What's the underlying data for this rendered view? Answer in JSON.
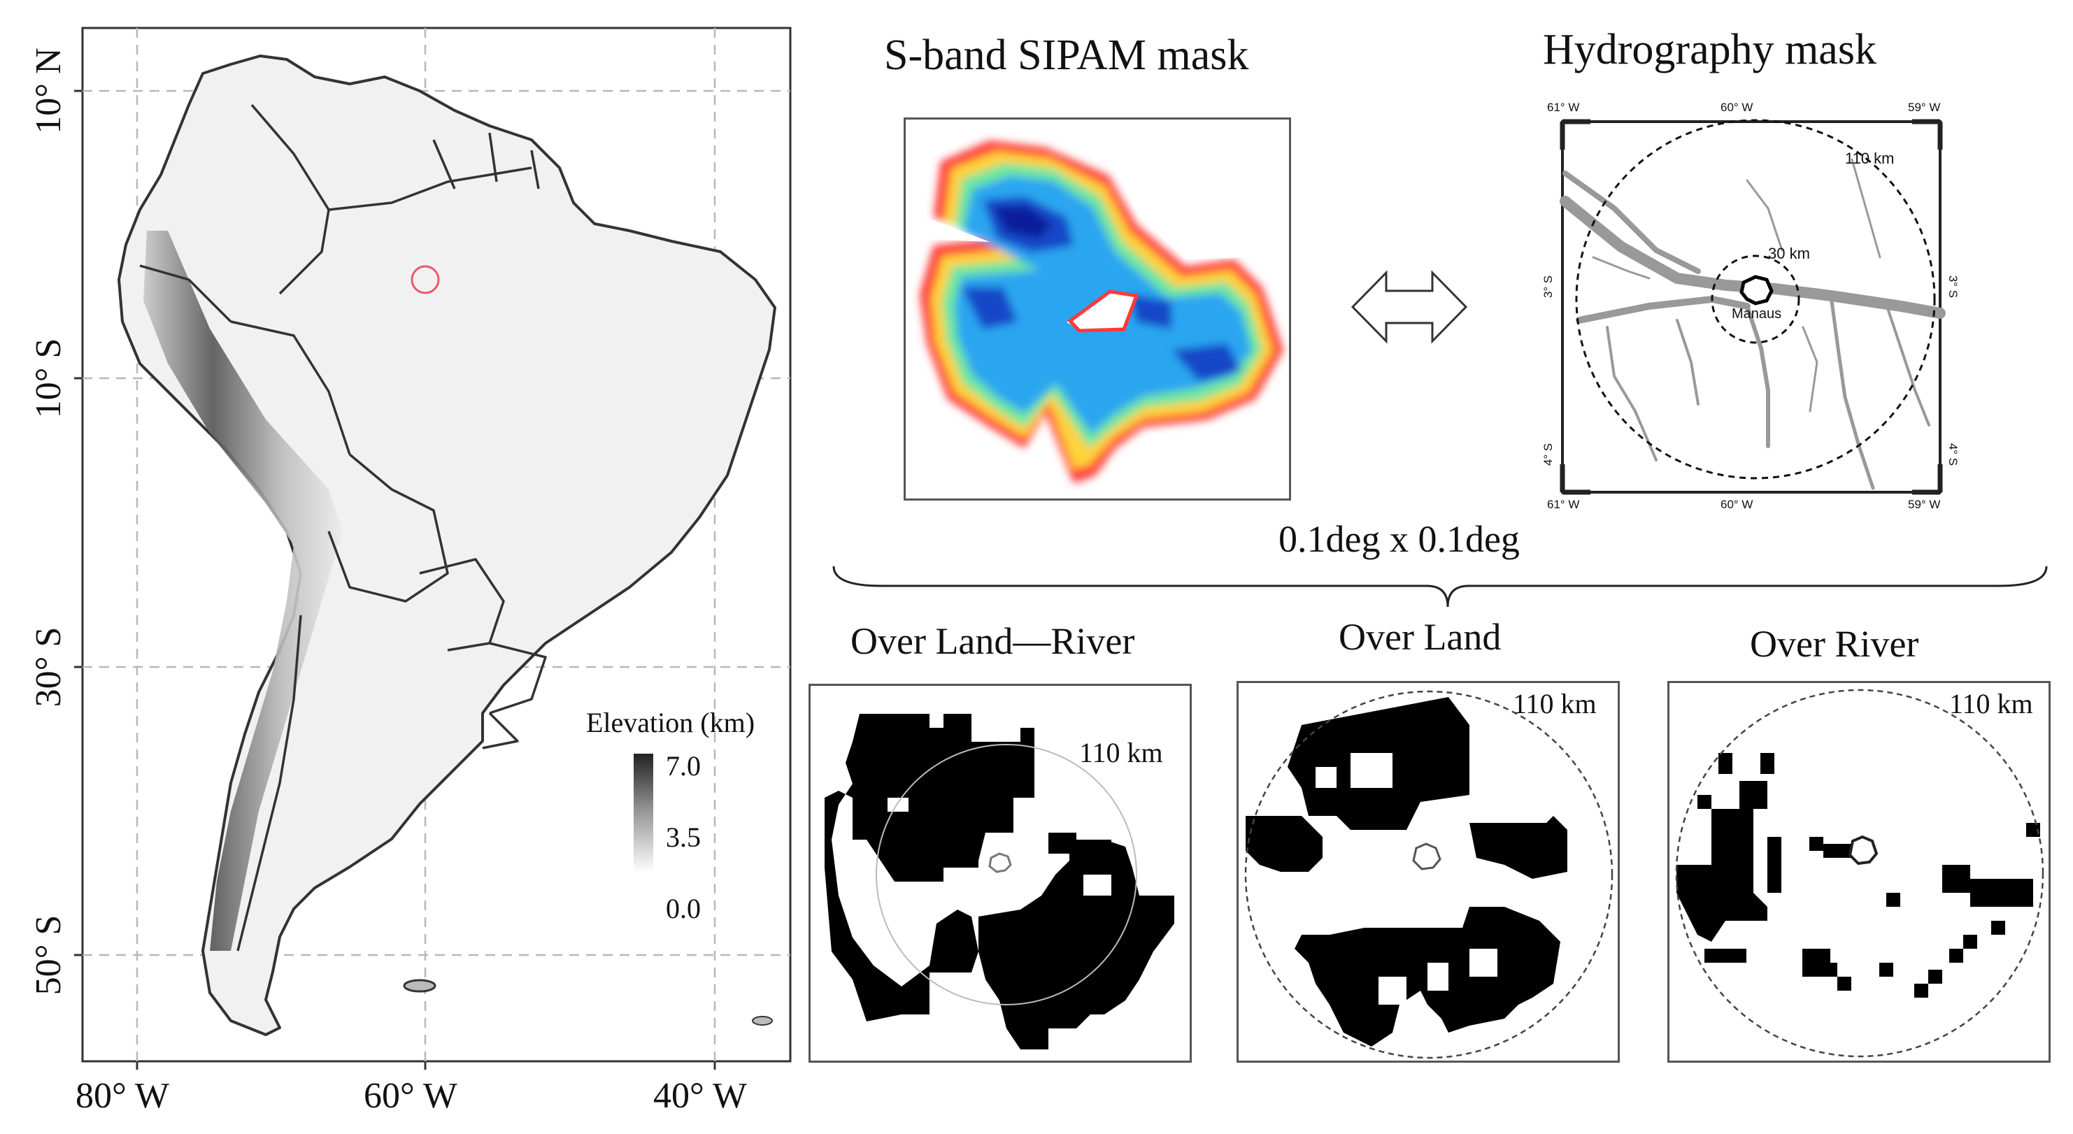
{
  "map": {
    "lon_ticks": [
      "80° W",
      "60° W",
      "40° W"
    ],
    "lat_ticks": [
      "10° N",
      "10° S",
      "30° S",
      "50° S"
    ],
    "legend": {
      "title": "Elevation (km)",
      "values": [
        "7.0",
        "3.5",
        "0.0"
      ]
    }
  },
  "sipam": {
    "title": "S-band SIPAM mask"
  },
  "hydro": {
    "title": "Hydrography mask",
    "top_ticks": [
      "61° W",
      "60° W",
      "59° W"
    ],
    "bottom_ticks": [
      "61° W",
      "60° W",
      "59° W"
    ],
    "left_ticks": [
      "3° S",
      "4° S"
    ],
    "right_ticks": [
      "3° S",
      "4° S"
    ],
    "ring_outer": "110 km",
    "ring_inner": "30 km",
    "city": "Manaus"
  },
  "resolution": "0.1deg x 0.1deg",
  "panels": [
    {
      "title": "Over Land—River",
      "ring": "110 km"
    },
    {
      "title": "Over Land",
      "ring": "110 km"
    },
    {
      "title": "Over River",
      "ring": "110 km"
    }
  ],
  "colors": {
    "frame": "#555555",
    "grid": "#bbbbbb",
    "radar_ring": "#e85a6a"
  }
}
